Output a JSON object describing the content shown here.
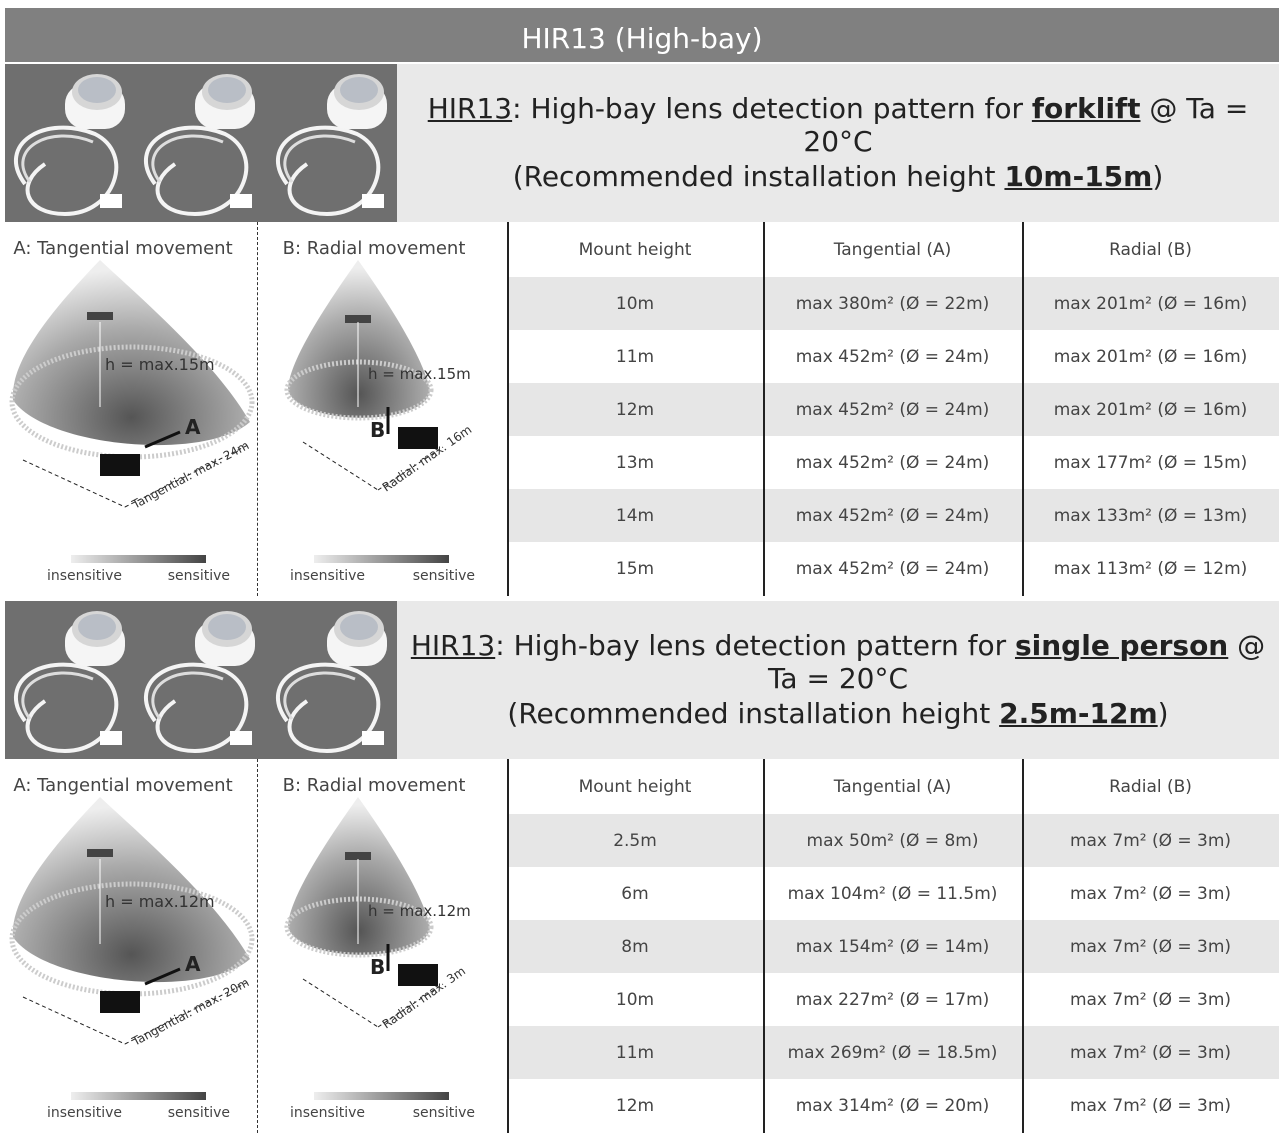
{
  "title": "HIR13 (High-bay)",
  "sections": [
    {
      "heading": {
        "model": "HIR13",
        "text": ": High-bay lens detection pattern for ",
        "target": "forklift",
        "condition": " @ Ta = 20°C"
      },
      "subheading": {
        "before": "(Recommended installation height ",
        "height": "10m-15m",
        "after": ")"
      },
      "diagrams": [
        {
          "title": "A: Tangential movement",
          "height_label": "h = max.15m",
          "direction": "A",
          "range_label": "Tangential: max. 24m",
          "scale_low": "insensitive",
          "scale_high": "sensitive"
        },
        {
          "title": "B: Radial movement",
          "height_label": "h = max.15m",
          "direction": "B",
          "range_label": "Radial: max. 16m",
          "scale_low": "insensitive",
          "scale_high": "sensitive"
        }
      ],
      "table": {
        "header": [
          "Mount height",
          "Tangential (A)",
          "Radial (B)"
        ],
        "rows": [
          [
            "10m",
            "max 380m² (Ø = 22m)",
            "max 201m² (Ø = 16m)"
          ],
          [
            "11m",
            "max 452m² (Ø = 24m)",
            "max 201m² (Ø = 16m)"
          ],
          [
            "12m",
            "max 452m² (Ø = 24m)",
            "max 201m² (Ø = 16m)"
          ],
          [
            "13m",
            "max 452m² (Ø = 24m)",
            "max 177m² (Ø = 15m)"
          ],
          [
            "14m",
            "max 452m² (Ø = 24m)",
            "max 133m² (Ø = 13m)"
          ],
          [
            "15m",
            "max 452m² (Ø = 24m)",
            "max 113m² (Ø = 12m)"
          ]
        ]
      }
    },
    {
      "heading": {
        "model": "HIR13",
        "text": ": High-bay lens detection pattern for ",
        "target": "single person",
        "condition": " @ Ta = 20°C"
      },
      "subheading": {
        "before": "(Recommended installation height ",
        "height": "2.5m-12m",
        "after": ")"
      },
      "diagrams": [
        {
          "title": "A: Tangential movement",
          "height_label": "h = max.12m",
          "direction": "A",
          "range_label": "Tangential: max. 20m",
          "scale_low": "insensitive",
          "scale_high": "sensitive"
        },
        {
          "title": "B: Radial movement",
          "height_label": "h = max.12m",
          "direction": "B",
          "range_label": "Radial: max. 3m",
          "scale_low": "insensitive",
          "scale_high": "sensitive"
        }
      ],
      "table": {
        "header": [
          "Mount height",
          "Tangential (A)",
          "Radial (B)"
        ],
        "rows": [
          [
            "2.5m",
            "max 50m² (Ø = 8m)",
            "max 7m² (Ø = 3m)"
          ],
          [
            "6m",
            "max 104m² (Ø = 11.5m)",
            "max 7m² (Ø = 3m)"
          ],
          [
            "8m",
            "max 154m² (Ø = 14m)",
            "max 7m² (Ø = 3m)"
          ],
          [
            "10m",
            "max 227m² (Ø = 17m)",
            "max 7m² (Ø = 3m)"
          ],
          [
            "11m",
            "max 269m² (Ø = 18.5m)",
            "max 7m² (Ø = 3m)"
          ],
          [
            "12m",
            "max 314m² (Ø = 20m)",
            "max 7m² (Ø = 3m)"
          ]
        ]
      }
    }
  ]
}
